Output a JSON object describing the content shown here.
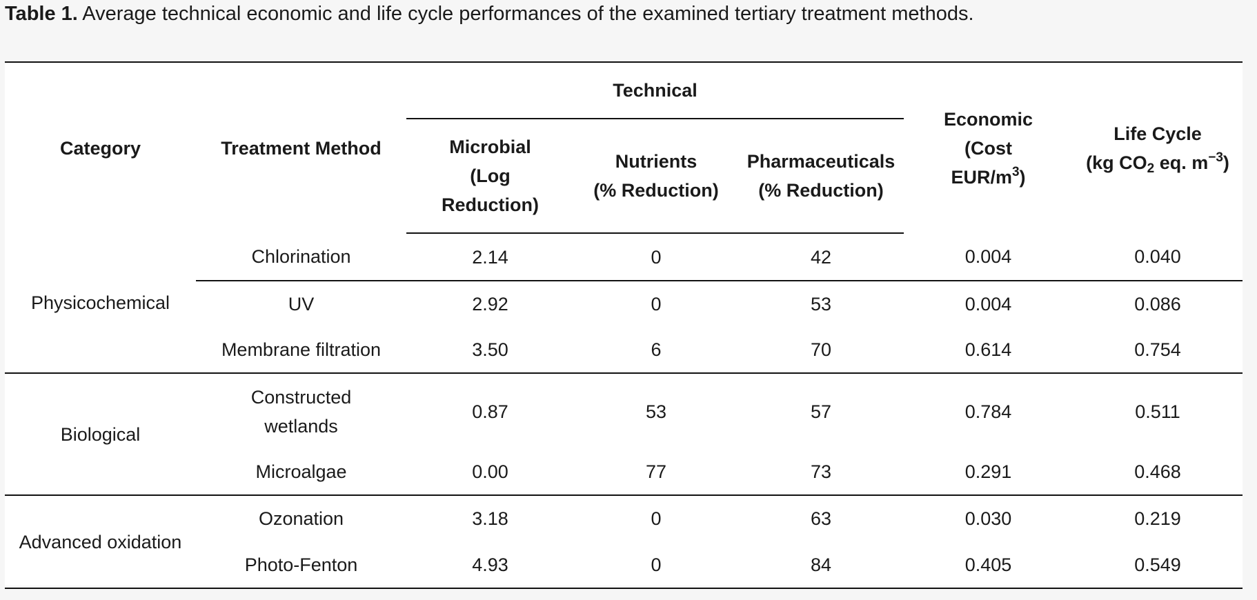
{
  "caption": {
    "label": "Table 1.",
    "text": " Average technical economic and life cycle performances of the examined tertiary treatment methods."
  },
  "header": {
    "category": "Category",
    "treatment_method": "Treatment Method",
    "technical_group": "Technical",
    "microbial": [
      "Microbial",
      "(Log",
      "Reduction)"
    ],
    "nutrients": [
      "Nutrients",
      "(% Reduction)"
    ],
    "pharmaceuticals": [
      "Pharmaceuticals",
      "(% Reduction)"
    ],
    "economic": {
      "line1": "Economic",
      "line2": "(Cost",
      "line3_pre": "EUR/m",
      "line3_sup": "3",
      "line3_post": ")"
    },
    "life_cycle": {
      "line1": "Life Cycle",
      "line2_a": "(kg CO",
      "line2_sub": "2",
      "line2_b": " eq. m",
      "line2_sup": "−3",
      "line2_c": ")"
    }
  },
  "categories": {
    "physicochemical": "Physicochemical",
    "biological": "Biological",
    "advanced_oxidation": "Advanced oxidation"
  },
  "rows": [
    {
      "method": "Chlorination",
      "microbial": "2.14",
      "nutrients": "0",
      "pharmaceuticals": "42",
      "economic": "0.004",
      "life_cycle": "0.040"
    },
    {
      "method": "UV",
      "microbial": "2.92",
      "nutrients": "0",
      "pharmaceuticals": "53",
      "economic": "0.004",
      "life_cycle": "0.086"
    },
    {
      "method": "Membrane filtration",
      "microbial": "3.50",
      "nutrients": "6",
      "pharmaceuticals": "70",
      "economic": "0.614",
      "life_cycle": "0.754"
    },
    {
      "method_lines": [
        "Constructed",
        "wetlands"
      ],
      "microbial": "0.87",
      "nutrients": "53",
      "pharmaceuticals": "57",
      "economic": "0.784",
      "life_cycle": "0.511"
    },
    {
      "method": "Microalgae",
      "microbial": "0.00",
      "nutrients": "77",
      "pharmaceuticals": "73",
      "economic": "0.291",
      "life_cycle": "0.468"
    },
    {
      "method": "Ozonation",
      "microbial": "3.18",
      "nutrients": "0",
      "pharmaceuticals": "63",
      "economic": "0.030",
      "life_cycle": "0.219"
    },
    {
      "method": "Photo-Fenton",
      "microbial": "4.93",
      "nutrients": "0",
      "pharmaceuticals": "84",
      "economic": "0.405",
      "life_cycle": "0.549"
    }
  ]
}
